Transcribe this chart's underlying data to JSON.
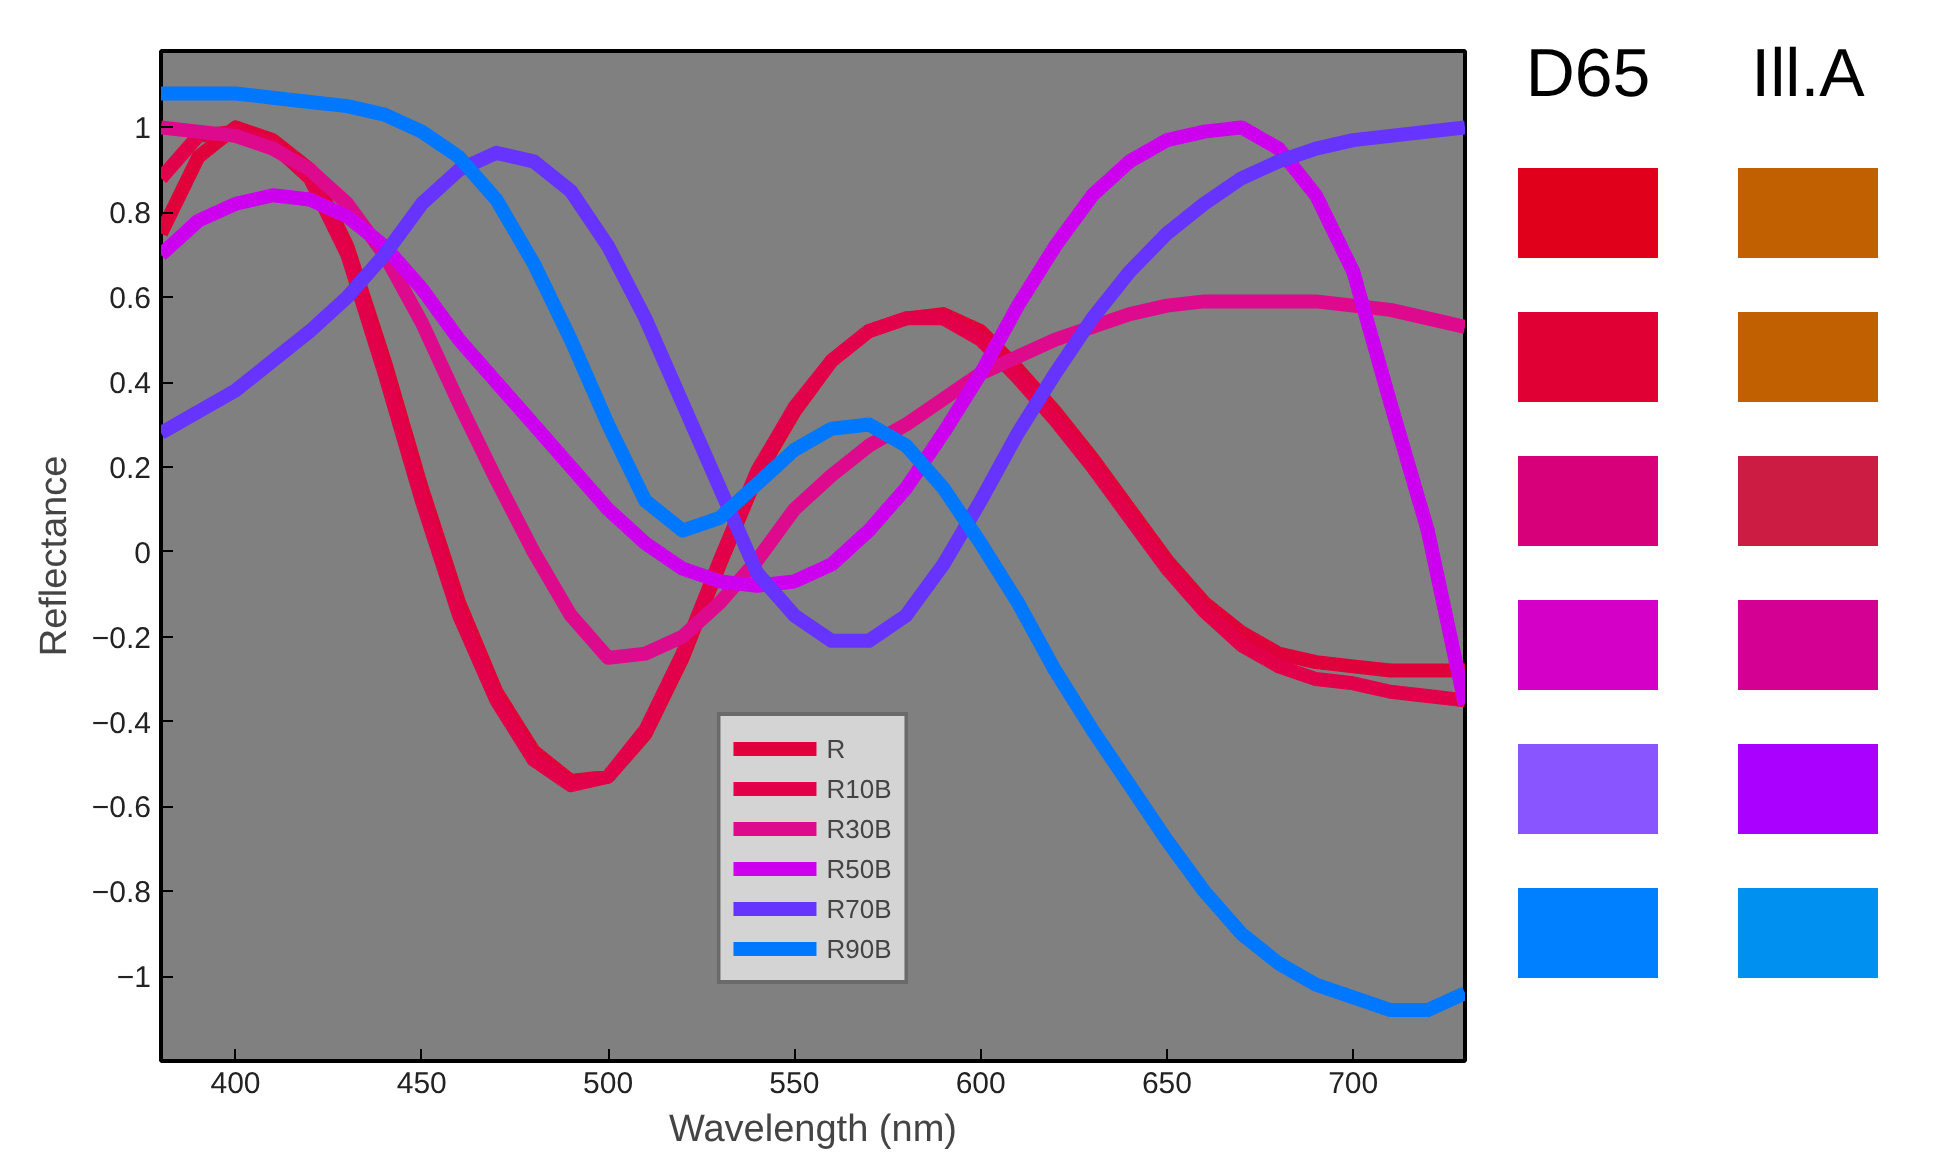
{
  "chart_data": [
    {
      "type": "line",
      "xlabel": "Wavelength (nm)",
      "ylabel": "Reflectance",
      "xlim": [
        380,
        730
      ],
      "ylim": [
        -1.2,
        1.18
      ],
      "xticks": [
        400,
        450,
        500,
        550,
        600,
        650,
        700
      ],
      "yticks": [
        -1,
        -0.8,
        -0.6,
        -0.4,
        -0.2,
        0,
        0.2,
        0.4,
        0.6,
        0.8,
        1
      ],
      "grid": false,
      "legend": "bottom",
      "marker": "none",
      "line_style": "solid",
      "x": [
        380,
        390,
        400,
        410,
        420,
        430,
        440,
        450,
        460,
        470,
        480,
        490,
        500,
        510,
        520,
        530,
        540,
        550,
        560,
        570,
        580,
        590,
        600,
        610,
        620,
        630,
        640,
        650,
        660,
        670,
        680,
        690,
        700,
        710,
        720,
        730
      ],
      "series": [
        {
          "name": "R",
          "color": "#e0003a",
          "values": [
            0.75,
            0.93,
            1.0,
            0.97,
            0.9,
            0.72,
            0.45,
            0.15,
            -0.12,
            -0.33,
            -0.47,
            -0.54,
            -0.53,
            -0.43,
            -0.25,
            -0.03,
            0.18,
            0.33,
            0.45,
            0.52,
            0.55,
            0.56,
            0.52,
            0.43,
            0.33,
            0.22,
            0.1,
            -0.02,
            -0.12,
            -0.19,
            -0.24,
            -0.26,
            -0.27,
            -0.28,
            -0.28,
            -0.28
          ]
        },
        {
          "name": "R10B",
          "color": "#e2004a",
          "values": [
            0.88,
            0.98,
            0.99,
            0.96,
            0.88,
            0.7,
            0.42,
            0.12,
            -0.15,
            -0.35,
            -0.49,
            -0.55,
            -0.53,
            -0.42,
            -0.24,
            -0.02,
            0.19,
            0.34,
            0.45,
            0.52,
            0.55,
            0.55,
            0.5,
            0.41,
            0.31,
            0.2,
            0.08,
            -0.04,
            -0.14,
            -0.22,
            -0.27,
            -0.3,
            -0.31,
            -0.33,
            -0.34,
            -0.35
          ]
        },
        {
          "name": "R30B",
          "color": "#dd0a8e",
          "values": [
            1.0,
            0.99,
            0.98,
            0.95,
            0.9,
            0.82,
            0.7,
            0.54,
            0.35,
            0.17,
            0.0,
            -0.15,
            -0.25,
            -0.24,
            -0.2,
            -0.12,
            -0.02,
            0.1,
            0.18,
            0.25,
            0.3,
            0.36,
            0.42,
            0.46,
            0.5,
            0.53,
            0.56,
            0.58,
            0.59,
            0.59,
            0.59,
            0.59,
            0.58,
            0.57,
            0.55,
            0.53
          ]
        },
        {
          "name": "R50B",
          "color": "#cc00ee",
          "values": [
            0.7,
            0.78,
            0.82,
            0.84,
            0.83,
            0.79,
            0.72,
            0.62,
            0.5,
            0.4,
            0.3,
            0.2,
            0.1,
            0.02,
            -0.04,
            -0.07,
            -0.08,
            -0.07,
            -0.03,
            0.05,
            0.15,
            0.28,
            0.42,
            0.58,
            0.72,
            0.84,
            0.92,
            0.97,
            0.99,
            1.0,
            0.95,
            0.84,
            0.66,
            0.35,
            0.05,
            -0.36
          ]
        },
        {
          "name": "R70B",
          "color": "#6633ff",
          "values": [
            0.28,
            0.33,
            0.38,
            0.45,
            0.52,
            0.6,
            0.7,
            0.82,
            0.9,
            0.94,
            0.92,
            0.85,
            0.72,
            0.55,
            0.35,
            0.15,
            -0.05,
            -0.15,
            -0.21,
            -0.21,
            -0.15,
            -0.03,
            0.12,
            0.28,
            0.42,
            0.55,
            0.66,
            0.75,
            0.82,
            0.88,
            0.92,
            0.95,
            0.97,
            0.98,
            0.99,
            1.0
          ]
        },
        {
          "name": "R90B",
          "color": "#0077ff",
          "values": [
            1.08,
            1.08,
            1.08,
            1.07,
            1.06,
            1.05,
            1.03,
            0.99,
            0.93,
            0.83,
            0.68,
            0.5,
            0.3,
            0.12,
            0.05,
            0.08,
            0.16,
            0.24,
            0.29,
            0.3,
            0.25,
            0.15,
            0.02,
            -0.12,
            -0.28,
            -0.42,
            -0.55,
            -0.68,
            -0.8,
            -0.9,
            -0.97,
            -1.02,
            -1.05,
            -1.08,
            -1.08,
            -1.04
          ]
        }
      ]
    },
    {
      "type": "other",
      "categories": [
        "D65",
        "Ill.A"
      ],
      "colors": [
        [
          "#e0001c",
          "#e00034",
          "#d8007a",
          "#d400c8",
          "#8855ff",
          "#0080ff"
        ],
        [
          "#c06000",
          "#c06000",
          "#cc1c44",
          "#d40094",
          "#aa00ff",
          "#0090f0"
        ]
      ]
    }
  ]
}
